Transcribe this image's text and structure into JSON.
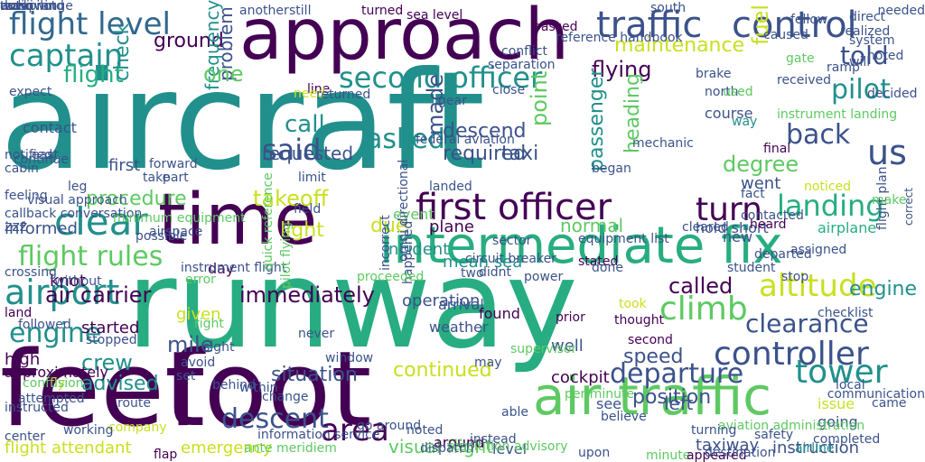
{
  "palette": {
    "purple": "#440154",
    "indigo": "#3b528b",
    "teal": "#21908c",
    "green": "#27ad81",
    "lime": "#5ec962",
    "yellow": "#c8e020",
    "navy": "#31688e"
  },
  "words": [
    {
      "text": "aircraft",
      "color": "teal"
    },
    {
      "text": "runway",
      "color": "green"
    },
    {
      "text": "feet",
      "color": "purple"
    },
    {
      "text": "foot",
      "color": "purple"
    },
    {
      "text": "approach",
      "color": "purple"
    },
    {
      "text": "time",
      "color": "purple"
    },
    {
      "text": "intermediate fix",
      "color": "green"
    },
    {
      "text": "air traffic",
      "color": "lime"
    },
    {
      "text": "traffic",
      "color": "indigo"
    },
    {
      "text": "control",
      "color": "indigo"
    },
    {
      "text": "flight level",
      "color": "navy"
    },
    {
      "text": "captain",
      "color": "teal"
    },
    {
      "text": "second officer",
      "color": "teal"
    },
    {
      "text": "first officer",
      "color": "purple"
    },
    {
      "text": "controller",
      "color": "indigo"
    },
    {
      "text": "flight rules",
      "color": "lime"
    },
    {
      "text": "airport",
      "color": "teal"
    },
    {
      "text": "engine",
      "color": "teal"
    },
    {
      "text": "clear",
      "color": "teal"
    },
    {
      "text": "altitude",
      "color": "yellow"
    },
    {
      "text": "climb",
      "color": "lime"
    },
    {
      "text": "clearance",
      "color": "indigo"
    },
    {
      "text": "departure",
      "color": "indigo"
    },
    {
      "text": "tower",
      "color": "teal"
    },
    {
      "text": "landing",
      "color": "green"
    },
    {
      "text": "pilot",
      "color": "teal"
    },
    {
      "text": "told",
      "color": "indigo"
    },
    {
      "text": "back",
      "color": "indigo"
    },
    {
      "text": "us",
      "color": "indigo"
    },
    {
      "text": "turn",
      "color": "purple"
    },
    {
      "text": "descent",
      "color": "indigo"
    },
    {
      "text": "area",
      "color": "purple"
    },
    {
      "text": "maintenance",
      "color": "yellow"
    },
    {
      "text": "flying",
      "color": "purple"
    },
    {
      "text": "ground",
      "color": "purple"
    },
    {
      "text": "flight",
      "color": "green"
    },
    {
      "text": "said",
      "color": "indigo"
    },
    {
      "text": "takeoff",
      "color": "yellow"
    },
    {
      "text": "procedure",
      "color": "lime"
    },
    {
      "text": "asked",
      "color": "teal"
    },
    {
      "text": "descend",
      "color": "indigo"
    },
    {
      "text": "call",
      "color": "teal"
    },
    {
      "text": "called",
      "color": "purple"
    },
    {
      "text": "immediately",
      "color": "purple"
    },
    {
      "text": "crew",
      "color": "teal"
    },
    {
      "text": "mile",
      "color": "indigo"
    },
    {
      "text": "advised",
      "color": "teal"
    },
    {
      "text": "situation",
      "color": "indigo"
    },
    {
      "text": "continued",
      "color": "yellow"
    },
    {
      "text": "position",
      "color": "indigo"
    },
    {
      "text": "speed",
      "color": "indigo"
    },
    {
      "text": "heading",
      "color": "lime"
    },
    {
      "text": "passenger",
      "color": "teal"
    },
    {
      "text": "problem",
      "color": "indigo"
    },
    {
      "text": "frequency",
      "color": "teal"
    },
    {
      "text": "check",
      "color": "teal"
    },
    {
      "text": "degree",
      "color": "lime"
    },
    {
      "text": "point",
      "color": "lime"
    },
    {
      "text": "one",
      "color": "lime"
    },
    {
      "text": "required",
      "color": "indigo"
    },
    {
      "text": "air carrier",
      "color": "purple"
    },
    {
      "text": "engine",
      "color": "teal"
    },
    {
      "text": "fuel",
      "color": "yellow"
    },
    {
      "text": "taxiway",
      "color": "indigo"
    },
    {
      "text": "left",
      "color": "indigo"
    },
    {
      "text": "flight attendant",
      "color": "yellow"
    },
    {
      "text": "emergency",
      "color": "yellow"
    },
    {
      "text": "instruction",
      "color": "indigo"
    },
    {
      "text": "visual flight",
      "color": "lime"
    },
    {
      "text": "normal",
      "color": "lime"
    },
    {
      "text": "due",
      "color": "yellow"
    },
    {
      "text": "light",
      "color": "yellow"
    },
    {
      "text": "taxi",
      "color": "indigo"
    },
    {
      "text": "made",
      "color": "indigo"
    },
    {
      "text": "requested",
      "color": "indigo"
    },
    {
      "text": "informed",
      "color": "indigo"
    },
    {
      "text": "zzz",
      "color": "indigo"
    },
    {
      "text": "contact",
      "color": "indigo"
    },
    {
      "text": "first",
      "color": "indigo"
    },
    {
      "text": "day",
      "color": "purple"
    },
    {
      "text": "given",
      "color": "yellow"
    },
    {
      "text": "started",
      "color": "purple"
    },
    {
      "text": "high",
      "color": "purple"
    },
    {
      "text": "approximately",
      "color": "purple"
    },
    {
      "text": "knot",
      "color": "purple"
    },
    {
      "text": "land",
      "color": "purple"
    },
    {
      "text": "set",
      "color": "indigo"
    },
    {
      "text": "change",
      "color": "indigo"
    },
    {
      "text": "operation",
      "color": "indigo"
    },
    {
      "text": "weather",
      "color": "indigo"
    },
    {
      "text": "arrival",
      "color": "indigo"
    },
    {
      "text": "cockpit",
      "color": "purple"
    },
    {
      "text": "went",
      "color": "indigo"
    },
    {
      "text": "airplane",
      "color": "green"
    },
    {
      "text": "level",
      "color": "indigo"
    },
    {
      "text": "see",
      "color": "indigo"
    },
    {
      "text": "believe",
      "color": "indigo"
    },
    {
      "text": "issue",
      "color": "yellow"
    },
    {
      "text": "going",
      "color": "indigo"
    },
    {
      "text": "well",
      "color": "indigo"
    },
    {
      "text": "event",
      "color": "lime"
    },
    {
      "text": "incident",
      "color": "teal"
    },
    {
      "text": "mean sea",
      "color": "teal"
    },
    {
      "text": "plane",
      "color": "purple"
    },
    {
      "text": "hold short",
      "color": "indigo"
    },
    {
      "text": "heard",
      "color": "purple"
    },
    {
      "text": "new",
      "color": "indigo"
    },
    {
      "text": "found",
      "color": "purple"
    },
    {
      "text": "prior",
      "color": "purple"
    },
    {
      "text": "second",
      "color": "purple"
    },
    {
      "text": "took",
      "color": "yellow"
    },
    {
      "text": "sea level",
      "color": "purple"
    },
    {
      "text": "turned",
      "color": "purple"
    },
    {
      "text": "another",
      "color": "indigo"
    },
    {
      "text": "still",
      "color": "indigo"
    },
    {
      "text": "received",
      "color": "indigo"
    },
    {
      "text": "federal aviation",
      "color": "indigo"
    },
    {
      "text": "stated",
      "color": "purple"
    },
    {
      "text": "way",
      "color": "teal"
    },
    {
      "text": "gate",
      "color": "lime"
    },
    {
      "text": "final",
      "color": "purple"
    },
    {
      "text": "line",
      "color": "purple"
    },
    {
      "text": "need",
      "color": "yellow"
    },
    {
      "text": "will",
      "color": "indigo"
    },
    {
      "text": "south",
      "color": "indigo"
    },
    {
      "text": "around",
      "color": "purple"
    },
    {
      "text": "thought",
      "color": "purple"
    },
    {
      "text": "course",
      "color": "indigo"
    },
    {
      "text": "instrument landing",
      "color": "lime"
    },
    {
      "text": "ramp",
      "color": "indigo"
    },
    {
      "text": "ante meridiem",
      "color": "lime"
    },
    {
      "text": "minute",
      "color": "lime"
    },
    {
      "text": "appeared",
      "color": "purple"
    },
    {
      "text": "resolution advisory",
      "color": "lime"
    },
    {
      "text": "dispatch",
      "color": "indigo"
    },
    {
      "text": "upon",
      "color": "indigo"
    },
    {
      "text": "right",
      "color": "lime"
    },
    {
      "text": "sight",
      "color": "indigo"
    },
    {
      "text": "never",
      "color": "indigo"
    },
    {
      "text": "window",
      "color": "indigo"
    },
    {
      "text": "avoid",
      "color": "indigo"
    },
    {
      "text": "center",
      "color": "indigo"
    },
    {
      "text": "fly",
      "color": "yellow"
    },
    {
      "text": "company",
      "color": "yellow"
    },
    {
      "text": "flap",
      "color": "purple"
    },
    {
      "text": "working",
      "color": "indigo"
    },
    {
      "text": "passed",
      "color": "purple"
    },
    {
      "text": "destination",
      "color": "indigo"
    },
    {
      "text": "noticed",
      "color": "yellow"
    },
    {
      "text": "checklist",
      "color": "indigo"
    },
    {
      "text": "stop",
      "color": "indigo"
    },
    {
      "text": "airline",
      "color": "teal"
    },
    {
      "text": "flight plan",
      "color": "indigo"
    },
    {
      "text": "correct",
      "color": "indigo"
    },
    {
      "text": "error",
      "color": "lime"
    },
    {
      "text": "instrument flight",
      "color": "indigo"
    },
    {
      "text": "reference handbook",
      "color": "indigo"
    },
    {
      "text": "conflict",
      "color": "indigo"
    },
    {
      "text": "separation",
      "color": "indigo"
    },
    {
      "text": "gear",
      "color": "indigo"
    },
    {
      "text": "landed",
      "color": "indigo"
    },
    {
      "text": "sector",
      "color": "indigo"
    },
    {
      "text": "equipment list",
      "color": "indigo"
    },
    {
      "text": "began",
      "color": "indigo"
    },
    {
      "text": "mechanic",
      "color": "indigo"
    },
    {
      "text": "contacted",
      "color": "indigo"
    },
    {
      "text": "departed",
      "color": "indigo"
    },
    {
      "text": "assigned",
      "color": "indigo"
    },
    {
      "text": "realized",
      "color": "indigo"
    },
    {
      "text": "direct",
      "color": "indigo"
    },
    {
      "text": "system",
      "color": "indigo"
    },
    {
      "text": "caused",
      "color": "indigo"
    },
    {
      "text": "decided",
      "color": "indigo"
    },
    {
      "text": "close",
      "color": "indigo"
    },
    {
      "text": "returned",
      "color": "indigo"
    },
    {
      "text": "field",
      "color": "indigo"
    },
    {
      "text": "limit",
      "color": "indigo"
    },
    {
      "text": "circuit breaker",
      "color": "indigo"
    },
    {
      "text": "two",
      "color": "indigo"
    },
    {
      "text": "didnt",
      "color": "indigo"
    },
    {
      "text": "done",
      "color": "indigo"
    },
    {
      "text": "power",
      "color": "indigo"
    },
    {
      "text": "student",
      "color": "indigo"
    },
    {
      "text": "fact",
      "color": "indigo"
    },
    {
      "text": "part",
      "color": "indigo"
    },
    {
      "text": "take",
      "color": "indigo"
    },
    {
      "text": "leg",
      "color": "indigo"
    },
    {
      "text": "forward",
      "color": "indigo"
    },
    {
      "text": "cleared",
      "color": "indigo"
    },
    {
      "text": "fellow",
      "color": "indigo"
    },
    {
      "text": "brake",
      "color": "indigo"
    },
    {
      "text": "north",
      "color": "indigo"
    },
    {
      "text": "make",
      "color": "lime"
    },
    {
      "text": "used",
      "color": "lime"
    },
    {
      "text": "noted",
      "color": "indigo"
    },
    {
      "text": "needed",
      "color": "indigo"
    },
    {
      "text": "without",
      "color": "indigo"
    },
    {
      "text": "followed",
      "color": "indigo"
    },
    {
      "text": "stopped",
      "color": "indigo"
    },
    {
      "text": "confusion",
      "color": "lime"
    },
    {
      "text": "attempted",
      "color": "indigo"
    },
    {
      "text": "instructed",
      "color": "indigo"
    },
    {
      "text": "crossing",
      "color": "indigo"
    },
    {
      "text": "behind",
      "color": "indigo"
    },
    {
      "text": "within",
      "color": "indigo"
    },
    {
      "text": "route",
      "color": "indigo"
    },
    {
      "text": "able",
      "color": "indigo"
    },
    {
      "text": "information service",
      "color": "indigo"
    },
    {
      "text": "instead",
      "color": "indigo"
    },
    {
      "text": "may",
      "color": "indigo"
    },
    {
      "text": "per minute",
      "color": "lime"
    },
    {
      "text": "aviation administration",
      "color": "lime"
    },
    {
      "text": "supervisor",
      "color": "lime"
    },
    {
      "text": "turning",
      "color": "indigo"
    },
    {
      "text": "completed",
      "color": "indigo"
    },
    {
      "text": "safety",
      "color": "indigo"
    },
    {
      "text": "local",
      "color": "indigo"
    },
    {
      "text": "communication",
      "color": "indigo"
    },
    {
      "text": "came",
      "color": "indigo"
    },
    {
      "text": "cabin",
      "color": "indigo"
    },
    {
      "text": "continue",
      "color": "indigo"
    },
    {
      "text": "east",
      "color": "indigo"
    },
    {
      "text": "feeling",
      "color": "indigo"
    },
    {
      "text": "visual approach",
      "color": "indigo"
    },
    {
      "text": "callback conversation",
      "color": "indigo"
    },
    {
      "text": "omni directional",
      "color": "indigo"
    },
    {
      "text": "incorrect",
      "color": "indigo"
    },
    {
      "text": "happened",
      "color": "indigo"
    },
    {
      "text": "expect",
      "color": "indigo"
    },
    {
      "text": "proceeded",
      "color": "lime"
    },
    {
      "text": "pilot flying",
      "color": "lime"
    },
    {
      "text": "quick reference",
      "color": "lime"
    },
    {
      "text": "minimum equipment",
      "color": "lime"
    },
    {
      "text": "possible",
      "color": "indigo"
    },
    {
      "text": "noted",
      "color": "indigo"
    },
    {
      "text": "go around",
      "color": "indigo"
    },
    {
      "text": "notified",
      "color": "indigo"
    },
    {
      "text": "airspace",
      "color": "indigo"
    },
    {
      "text": "radio range",
      "color": "indigo"
    },
    {
      "text": "downwind",
      "color": "indigo"
    },
    {
      "text": "tcasii",
      "color": "indigo"
    },
    {
      "text": "autopilot",
      "color": "indigo"
    },
    {
      "text": "work",
      "color": "indigo"
    },
    {
      "text": "tank",
      "color": "indigo"
    },
    {
      "text": "now",
      "color": "indigo"
    },
    {
      "text": "away",
      "color": "indigo"
    }
  ]
}
